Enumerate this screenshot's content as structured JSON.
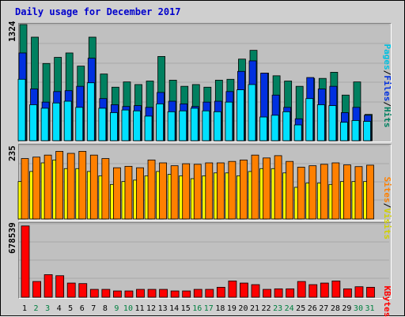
{
  "title": "Daily usage for December 2017",
  "colors": {
    "pages": "#00e0ff",
    "files": "#0030e0",
    "hits": "#008060",
    "visits": "#ffff00",
    "sites": "#ff8000",
    "kbytes": "#ff0000",
    "title": "#0000cc",
    "weekend_day": "#008040",
    "weekday_day": "#000000"
  },
  "labels": {
    "hits_max": "1324",
    "sites_max": "235",
    "kbytes_max": "678539",
    "pages": "Pages",
    "files": "Files",
    "hits": "Hits",
    "sites": "Sites",
    "visits": "Visits",
    "kbytes": "KBytes",
    "sep": "/"
  },
  "chart_data": {
    "type": "bar",
    "title": "Daily usage for December 2017",
    "categories": [
      "1",
      "2",
      "3",
      "4",
      "5",
      "6",
      "7",
      "8",
      "9",
      "10",
      "11",
      "12",
      "13",
      "14",
      "15",
      "16",
      "17",
      "18",
      "19",
      "20",
      "21",
      "22",
      "23",
      "24",
      "25",
      "26",
      "27",
      "28",
      "29",
      "30",
      "31"
    ],
    "weekend_days": [
      "2",
      "3",
      "9",
      "10",
      "16",
      "17",
      "23",
      "24",
      "30",
      "31"
    ],
    "panels": [
      {
        "name": "hits_files_pages",
        "max_label": "1324",
        "ylim": [
          0,
          1324
        ],
        "series": [
          {
            "name": "Hits",
            "values": [
              1324,
              1180,
              880,
              950,
              1000,
              850,
              1180,
              760,
              610,
              670,
              640,
              680,
              960,
              690,
              620,
              640,
              610,
              690,
              700,
              930,
              1030,
              770,
              740,
              680,
              620,
              710,
              710,
              780,
              520,
              670,
              300
            ]
          },
          {
            "name": "Files",
            "values": [
              1000,
              590,
              440,
              560,
              570,
              620,
              940,
              480,
              410,
              390,
              400,
              380,
              550,
              450,
              420,
              390,
              440,
              450,
              560,
              790,
              910,
              770,
              520,
              380,
              250,
              720,
              590,
              620,
              320,
              380,
              290
            ]
          },
          {
            "name": "Pages",
            "values": [
              700,
              410,
              370,
              430,
              450,
              380,
              660,
              370,
              320,
              350,
              340,
              280,
              420,
              330,
              340,
              370,
              340,
              330,
              440,
              580,
              640,
              270,
              290,
              330,
              180,
              480,
              410,
              400,
              210,
              230,
              220
            ]
          }
        ]
      },
      {
        "name": "sites_visits",
        "max_label": "235",
        "ylim": [
          0,
          235
        ],
        "series": [
          {
            "name": "Visits",
            "values": [
              130,
              165,
              195,
              205,
              175,
              175,
              165,
              150,
              120,
              130,
              135,
              150,
              165,
              155,
              150,
              140,
              150,
              160,
              160,
              150,
              165,
              175,
              175,
              160,
              110,
              125,
              125,
              120,
              130,
              130,
              130
            ]
          },
          {
            "name": "Sites",
            "values": [
              210,
              215,
              222,
              235,
              228,
              235,
              222,
              210,
              178,
              183,
              178,
              205,
              195,
              185,
              192,
              190,
              195,
              195,
              200,
              205,
              222,
              212,
              220,
              200,
              180,
              185,
              190,
              195,
              188,
              182,
              187
            ]
          }
        ]
      },
      {
        "name": "kbytes",
        "max_label": "678539",
        "ylim": [
          0,
          678539
        ],
        "series": [
          {
            "name": "KBytes",
            "values": [
              678539,
              150000,
              215000,
              205000,
              135000,
              130000,
              75000,
              75000,
              60000,
              60000,
              75000,
              75000,
              75000,
              60000,
              60000,
              75000,
              75000,
              95000,
              155000,
              135000,
              120000,
              75000,
              80000,
              80000,
              150000,
              120000,
              135000,
              155000,
              80000,
              100000,
              95000
            ]
          }
        ]
      }
    ]
  }
}
